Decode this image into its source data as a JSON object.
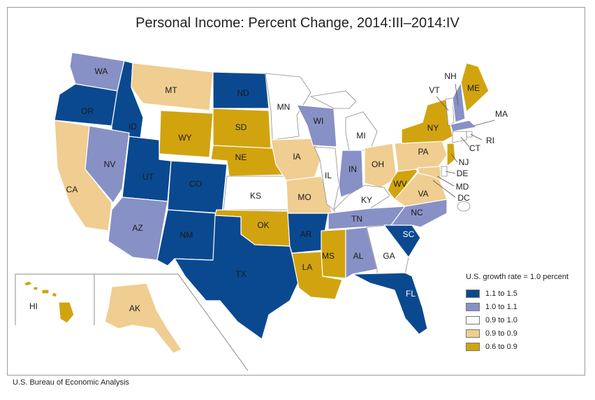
{
  "title": "Personal Income: Percent Change, 2014:III–2014:IV",
  "source": "U.S. Bureau of Economic Analysis",
  "legend": {
    "title": "U.S. growth rate = 1.0 percent",
    "items": [
      {
        "label": "1.1 to 1.5",
        "color": "#0a4990"
      },
      {
        "label": "1.0 to 1.1",
        "color": "#8791c6"
      },
      {
        "label": "0.9 to 1.0",
        "color": "#ffffff"
      },
      {
        "label": "0.9 to 0.9",
        "color": "#f0cd90"
      },
      {
        "label": "0.6 to 0.9",
        "color": "#d1a40f"
      }
    ]
  },
  "states": {
    "WA": {
      "label": "WA",
      "class": 1
    },
    "OR": {
      "label": "OR",
      "class": 0
    },
    "CA": {
      "label": "CA",
      "class": 3
    },
    "ID": {
      "label": "ID",
      "class": 0
    },
    "NV": {
      "label": "NV",
      "class": 1
    },
    "MT": {
      "label": "MT",
      "class": 3
    },
    "WY": {
      "label": "WY",
      "class": 4
    },
    "UT": {
      "label": "UT",
      "class": 0
    },
    "AZ": {
      "label": "AZ",
      "class": 1
    },
    "CO": {
      "label": "CO",
      "class": 0
    },
    "NM": {
      "label": "NM",
      "class": 0
    },
    "ND": {
      "label": "ND",
      "class": 0
    },
    "SD": {
      "label": "SD",
      "class": 4
    },
    "NE": {
      "label": "NE",
      "class": 4
    },
    "KS": {
      "label": "KS",
      "class": 2
    },
    "OK": {
      "label": "OK",
      "class": 4
    },
    "TX": {
      "label": "TX",
      "class": 0
    },
    "MN": {
      "label": "MN",
      "class": 2
    },
    "IA": {
      "label": "IA",
      "class": 3
    },
    "MO": {
      "label": "MO",
      "class": 3
    },
    "AR": {
      "label": "AR",
      "class": 0
    },
    "LA": {
      "label": "LA",
      "class": 4
    },
    "WI": {
      "label": "WI",
      "class": 1
    },
    "IL": {
      "label": "IL",
      "class": 2
    },
    "MI": {
      "label": "MI",
      "class": 2
    },
    "IN": {
      "label": "IN",
      "class": 1
    },
    "OH": {
      "label": "OH",
      "class": 3
    },
    "KY": {
      "label": "KY",
      "class": 2
    },
    "TN": {
      "label": "TN",
      "class": 1
    },
    "MS": {
      "label": "MS",
      "class": 4
    },
    "AL": {
      "label": "AL",
      "class": 1
    },
    "GA": {
      "label": "GA",
      "class": 2
    },
    "FL": {
      "label": "FL",
      "class": 0
    },
    "SC": {
      "label": "SC",
      "class": 0
    },
    "NC": {
      "label": "NC",
      "class": 1
    },
    "VA": {
      "label": "VA",
      "class": 3
    },
    "WV": {
      "label": "WV",
      "class": 4
    },
    "PA": {
      "label": "PA",
      "class": 3
    },
    "NY": {
      "label": "NY",
      "class": 4
    },
    "VT": {
      "label": "VT",
      "class": 2
    },
    "NH": {
      "label": "NH",
      "class": 1
    },
    "ME": {
      "label": "ME",
      "class": 4
    },
    "MA": {
      "label": "MA",
      "class": 1
    },
    "RI": {
      "label": "RI",
      "class": 2
    },
    "CT": {
      "label": "CT",
      "class": 2
    },
    "NJ": {
      "label": "NJ",
      "class": 4
    },
    "DE": {
      "label": "DE",
      "class": 2
    },
    "MD": {
      "label": "MD",
      "class": 3
    },
    "DC": {
      "label": "DC",
      "class": 2
    },
    "AK": {
      "label": "AK",
      "class": 3
    },
    "HI": {
      "label": "HI",
      "class": 4
    }
  }
}
